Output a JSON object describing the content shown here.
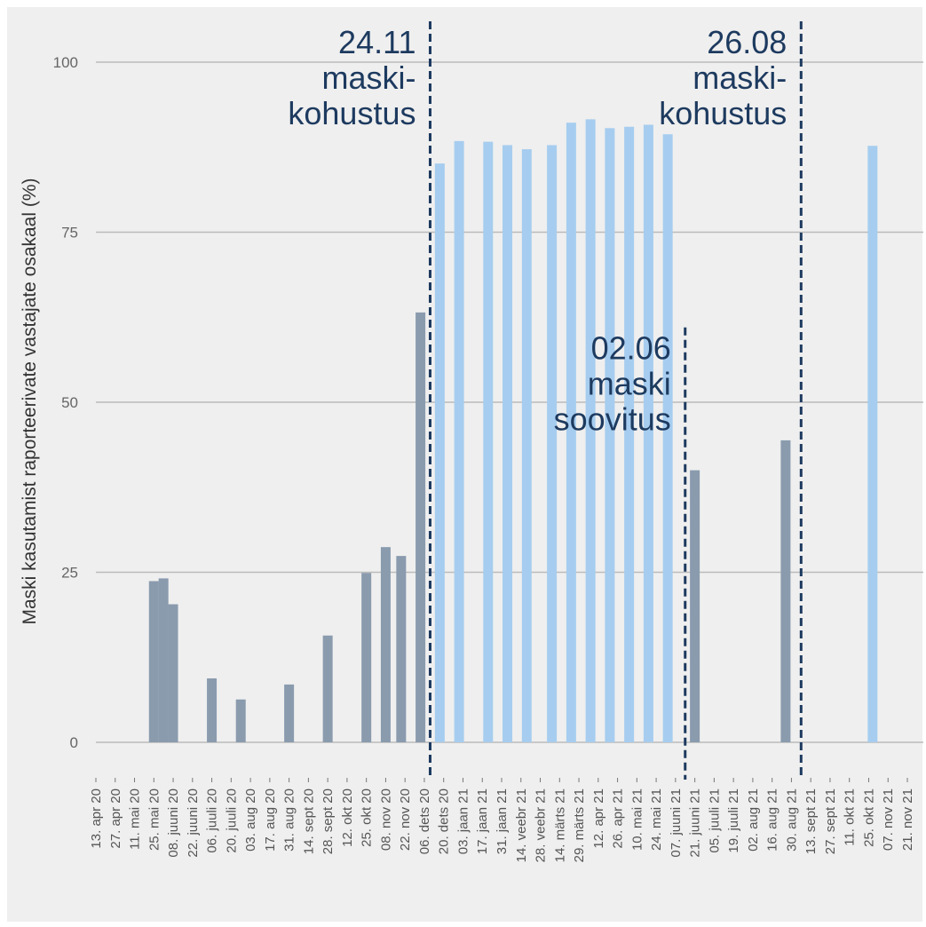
{
  "chart_data": {
    "type": "bar",
    "ylabel": "Maski kasutamist raporteerivate vastajate osakaal (%)",
    "xlabel": "",
    "ylim": [
      0,
      100
    ],
    "yticks": [
      "0",
      "25",
      "50",
      "75",
      "100"
    ],
    "grid": true,
    "colors": {
      "dark": "#8a9bae",
      "light": "#a6cdef",
      "annotation": "#1d3a5f",
      "grid": "#bbbbbb",
      "background": "#efefef"
    },
    "categories": [
      "13. apr 20",
      "27. apr 20",
      "11. mai 20",
      "25. mai 20",
      "08. juuni 20",
      "22. juuni 20",
      "06. juuli 20",
      "20. juuli 20",
      "03. aug 20",
      "17. aug 20",
      "31. aug 20",
      "14. sept 20",
      "28. sept 20",
      "12. okt 20",
      "25. okt 20",
      "08. nov 20",
      "22. nov 20",
      "06. dets 20",
      "20. dets 20",
      "03. jaan 21",
      "17. jaan 21",
      "31. jaan 21",
      "14. veebr 21",
      "28. veebr 21",
      "14. märts 21",
      "29. märts 21",
      "12. apr 21",
      "26. apr 21",
      "10. mai 21",
      "24. mai 21",
      "07. juuni 21",
      "21. juuni 21",
      "05. juuli 21",
      "19. juuli 21",
      "02. aug 21",
      "16. aug 21",
      "30. aug 21",
      "13. sept 21",
      "27. sept 21",
      "11. okt 21",
      "25. okt 21",
      "07. nov 21",
      "21. nov 21"
    ],
    "bars": [
      {
        "pos": 3.0,
        "value": 23.7,
        "style": "dark"
      },
      {
        "pos": 3.5,
        "value": 24.1,
        "style": "dark"
      },
      {
        "pos": 4.0,
        "value": 20.3,
        "style": "dark"
      },
      {
        "pos": 6.0,
        "value": 9.4,
        "style": "dark"
      },
      {
        "pos": 7.5,
        "value": 6.3,
        "style": "dark"
      },
      {
        "pos": 10.0,
        "value": 8.5,
        "style": "dark"
      },
      {
        "pos": 12.0,
        "value": 15.7,
        "style": "dark"
      },
      {
        "pos": 14.0,
        "value": 24.9,
        "style": "dark"
      },
      {
        "pos": 15.0,
        "value": 28.7,
        "style": "dark"
      },
      {
        "pos": 15.8,
        "value": 27.4,
        "style": "dark"
      },
      {
        "pos": 16.8,
        "value": 63.2,
        "style": "dark"
      },
      {
        "pos": 17.8,
        "value": 85.1,
        "style": "light"
      },
      {
        "pos": 18.8,
        "value": 88.4,
        "style": "light"
      },
      {
        "pos": 20.3,
        "value": 88.3,
        "style": "light"
      },
      {
        "pos": 21.3,
        "value": 87.8,
        "style": "light"
      },
      {
        "pos": 22.3,
        "value": 87.2,
        "style": "light"
      },
      {
        "pos": 23.6,
        "value": 87.8,
        "style": "light"
      },
      {
        "pos": 24.6,
        "value": 91.1,
        "style": "light"
      },
      {
        "pos": 25.6,
        "value": 91.6,
        "style": "light"
      },
      {
        "pos": 26.6,
        "value": 90.3,
        "style": "light"
      },
      {
        "pos": 27.6,
        "value": 90.5,
        "style": "light"
      },
      {
        "pos": 28.6,
        "value": 90.8,
        "style": "light"
      },
      {
        "pos": 29.6,
        "value": 89.4,
        "style": "light"
      },
      {
        "pos": 31.0,
        "value": 40.0,
        "style": "dark"
      },
      {
        "pos": 35.7,
        "value": 44.4,
        "style": "dark"
      },
      {
        "pos": 40.2,
        "value": 87.7,
        "style": "light"
      }
    ],
    "annotations": [
      {
        "pos": 17.3,
        "top": 106,
        "lines": [
          "24.11",
          "maski-",
          "kohustus"
        ]
      },
      {
        "pos": 36.5,
        "top": 106,
        "lines": [
          "26.08",
          "maski-",
          "kohustus"
        ]
      },
      {
        "pos": 30.5,
        "top": 61,
        "lines": [
          "02.06",
          "maski",
          "soovitus"
        ]
      }
    ]
  }
}
